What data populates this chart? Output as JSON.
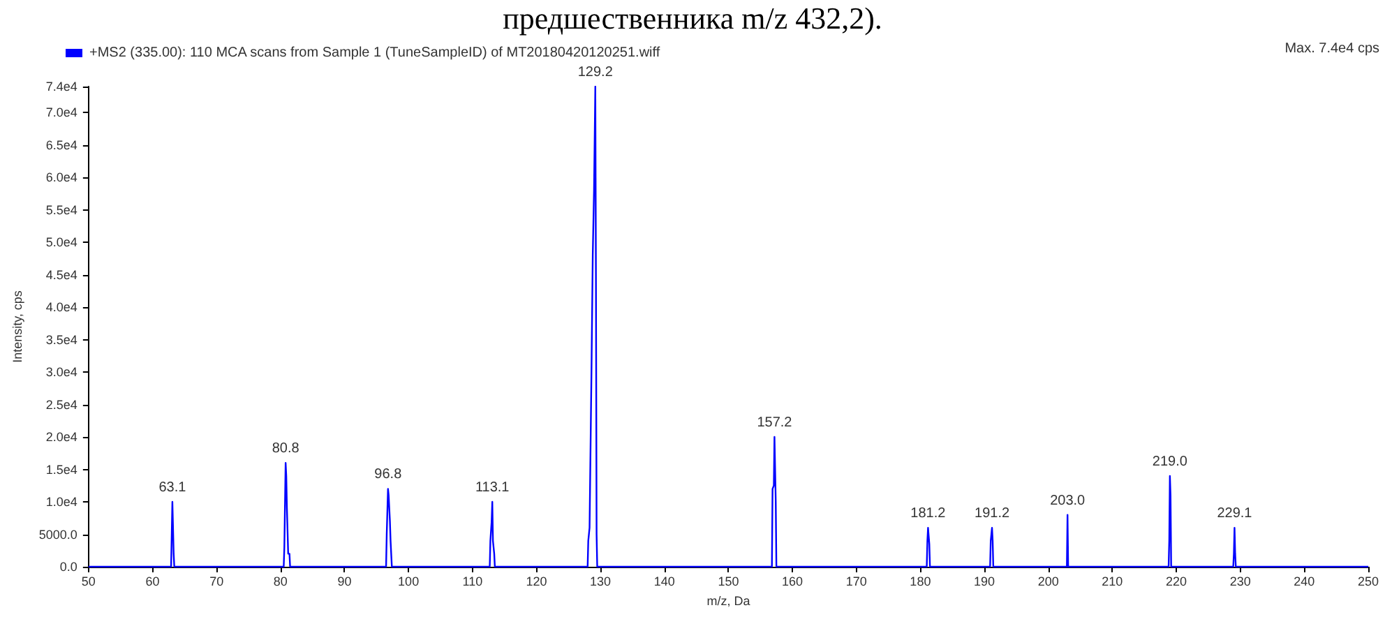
{
  "chart_data": {
    "type": "line",
    "xlabel": "m/z, Da",
    "ylabel": "Intensity, cps",
    "annotations": [
      "предшественника m/z 432,2).",
      "Max. 7.4e4 cps",
      {
        "text": "63.1",
        "x": 63.1,
        "y": 10000
      },
      {
        "text": "80.8",
        "x": 80.8,
        "y": 16000
      },
      {
        "text": "96.8",
        "x": 96.8,
        "y": 12000
      },
      {
        "text": "113.1",
        "x": 113.1,
        "y": 10000
      },
      {
        "text": "129.2",
        "x": 129.2,
        "y": 74000
      },
      {
        "text": "157.2",
        "x": 157.2,
        "y": 20000
      },
      {
        "text": "181.2",
        "x": 181.2,
        "y": 6000
      },
      {
        "text": "191.2",
        "x": 191.2,
        "y": 6000
      },
      {
        "text": "203.0",
        "x": 203.0,
        "y": 8000
      },
      {
        "text": "219.0",
        "x": 219.0,
        "y": 14000
      },
      {
        "text": "229.1",
        "x": 229.1,
        "y": 6000
      }
    ],
    "series": [
      {
        "name": "+MS2 (335.00): 110 MCA scans from Sample 1 (TuneSampleID) of MT20180420120251.wiff",
        "color": "#0000ff",
        "x": [
          50,
          62.9,
          63.1,
          63.2,
          63.3,
          63.4,
          80.5,
          80.6,
          80.8,
          80.9,
          81.0,
          81.2,
          81.4,
          81.5,
          96.5,
          96.6,
          96.8,
          96.9,
          97.1,
          97.2,
          97.4,
          112.7,
          112.8,
          113.0,
          113.1,
          113.2,
          113.4,
          113.5,
          128.0,
          128.1,
          128.3,
          128.6,
          128.8,
          129.0,
          129.2,
          129.3,
          129.4,
          129.5,
          156.8,
          156.9,
          157.1,
          157.2,
          157.4,
          157.5,
          181.0,
          181.1,
          181.2,
          181.4,
          181.5,
          190.9,
          191.0,
          191.2,
          191.3,
          191.4,
          202.9,
          203.0,
          203.1,
          218.8,
          218.9,
          219.0,
          219.1,
          219.2,
          228.9,
          229.0,
          229.1,
          229.2,
          229.3,
          250
        ],
        "values": [
          0,
          0,
          10000,
          10000,
          2000,
          0,
          0,
          3000,
          16000,
          14000,
          9000,
          2000,
          2000,
          0,
          0,
          5000,
          12000,
          11000,
          7000,
          4000,
          0,
          0,
          4000,
          7000,
          10000,
          4000,
          2000,
          0,
          0,
          4000,
          6000,
          30000,
          48000,
          58000,
          74000,
          44000,
          5000,
          0,
          0,
          12000,
          12500,
          20000,
          10000,
          0,
          0,
          4000,
          6000,
          3500,
          0,
          0,
          4000,
          6000,
          4000,
          0,
          0,
          8000,
          0,
          0,
          4000,
          14000,
          11000,
          0,
          0,
          2000,
          6000,
          2000,
          0,
          0
        ]
      }
    ],
    "xlim": [
      50,
      250
    ],
    "xticks": [
      50,
      60,
      70,
      80,
      90,
      100,
      110,
      120,
      130,
      140,
      150,
      160,
      170,
      180,
      190,
      200,
      210,
      220,
      230,
      240,
      250
    ],
    "ylim": [
      0,
      74000
    ],
    "yticks": [
      {
        "value": 0,
        "label": "0.0"
      },
      {
        "value": 5000,
        "label": "5000.0"
      },
      {
        "value": 10000,
        "label": "1.0e4"
      },
      {
        "value": 15000,
        "label": "1.5e4"
      },
      {
        "value": 20000,
        "label": "2.0e4"
      },
      {
        "value": 25000,
        "label": "2.5e4"
      },
      {
        "value": 30000,
        "label": "3.0e4"
      },
      {
        "value": 35000,
        "label": "3.5e4"
      },
      {
        "value": 40000,
        "label": "4.0e4"
      },
      {
        "value": 45000,
        "label": "4.5e4"
      },
      {
        "value": 50000,
        "label": "5.0e4"
      },
      {
        "value": 55000,
        "label": "5.5e4"
      },
      {
        "value": 60000,
        "label": "6.0e4"
      },
      {
        "value": 65000,
        "label": "6.5e4"
      },
      {
        "value": 70000,
        "label": "7.0e4"
      },
      {
        "value": 74000,
        "label": "7.4e4"
      }
    ],
    "grid": false,
    "legend": "top left",
    "marker": "none",
    "line_style": "solid"
  }
}
